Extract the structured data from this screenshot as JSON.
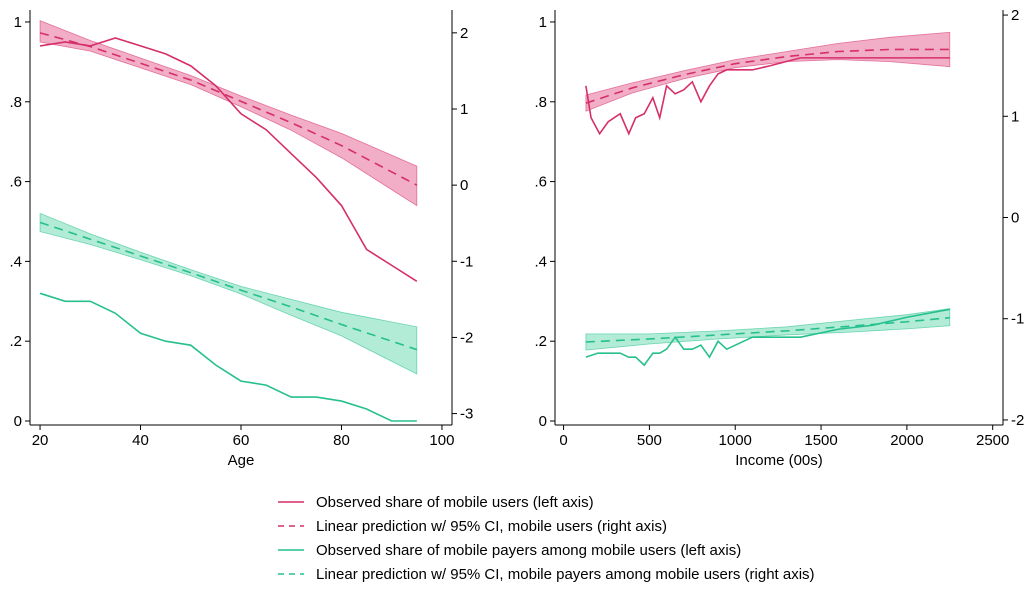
{
  "colors": {
    "mobile_users": "#d62f6a",
    "mobile_users_ci": "#ee9ab8",
    "mobile_payers": "#26c08e",
    "mobile_payers_ci": "#9fe6cc",
    "axis": "#000000"
  },
  "chart_data": [
    {
      "type": "line",
      "xlabel": "Age",
      "x_ticks": [
        20,
        40,
        60,
        80,
        100
      ],
      "xlim": [
        18,
        102
      ],
      "left_ylim": [
        -0.01,
        1.03
      ],
      "left_ticks": [
        "0",
        ".2",
        ".4",
        ".6",
        ".8",
        "1"
      ],
      "left_tick_values": [
        0,
        0.2,
        0.4,
        0.6,
        0.8,
        1
      ],
      "right_ylim": [
        -3.15,
        2.3
      ],
      "right_ticks": [
        "-3",
        "-2",
        "-1",
        "0",
        "1",
        "2"
      ],
      "right_tick_values": [
        -3,
        -2,
        -1,
        0,
        1,
        2
      ],
      "series": [
        {
          "id": "obs_users",
          "axis": "left",
          "style": "solid",
          "color_key": "mobile_users",
          "x": [
            20,
            25,
            30,
            35,
            40,
            45,
            50,
            55,
            60,
            65,
            70,
            75,
            80,
            85,
            90,
            95
          ],
          "y": [
            0.94,
            0.95,
            0.94,
            0.96,
            0.94,
            0.92,
            0.89,
            0.84,
            0.77,
            0.73,
            0.67,
            0.61,
            0.54,
            0.43,
            0.39,
            0.35
          ]
        },
        {
          "id": "pred_users",
          "axis": "right",
          "style": "dashed",
          "color_key": "mobile_users",
          "x": [
            20,
            30,
            40,
            50,
            60,
            70,
            80,
            95
          ],
          "y": [
            2.0,
            1.82,
            1.6,
            1.38,
            1.1,
            0.82,
            0.52,
            0.0
          ],
          "ci_lower": [
            1.88,
            1.76,
            1.54,
            1.32,
            1.03,
            0.72,
            0.36,
            -0.27
          ],
          "ci_upper": [
            2.16,
            1.9,
            1.67,
            1.44,
            1.17,
            0.92,
            0.68,
            0.25
          ]
        },
        {
          "id": "obs_payers",
          "axis": "left",
          "style": "solid",
          "color_key": "mobile_payers",
          "x": [
            20,
            25,
            30,
            35,
            40,
            45,
            50,
            55,
            60,
            65,
            70,
            75,
            80,
            85,
            90,
            95
          ],
          "y": [
            0.32,
            0.3,
            0.3,
            0.27,
            0.22,
            0.2,
            0.19,
            0.14,
            0.1,
            0.09,
            0.06,
            0.06,
            0.05,
            0.03,
            0.0,
            0.0
          ]
        },
        {
          "id": "pred_payers",
          "axis": "right",
          "style": "dashed",
          "color_key": "mobile_payers",
          "x": [
            20,
            30,
            40,
            50,
            60,
            70,
            80,
            95
          ],
          "y": [
            -0.49,
            -0.71,
            -0.93,
            -1.15,
            -1.38,
            -1.6,
            -1.83,
            -2.16
          ],
          "ci_lower": [
            -0.61,
            -0.78,
            -0.98,
            -1.19,
            -1.43,
            -1.71,
            -1.98,
            -2.48
          ],
          "ci_upper": [
            -0.37,
            -0.64,
            -0.88,
            -1.11,
            -1.33,
            -1.5,
            -1.67,
            -1.86
          ]
        }
      ]
    },
    {
      "type": "line",
      "xlabel": "Income (00s)",
      "x_ticks": [
        0,
        500,
        1000,
        1500,
        2000,
        2500
      ],
      "xlim": [
        -50,
        2560
      ],
      "left_ylim": [
        -0.01,
        1.03
      ],
      "left_ticks": [
        "0",
        ".2",
        ".4",
        ".6",
        ".8",
        "1"
      ],
      "left_tick_values": [
        0,
        0.2,
        0.4,
        0.6,
        0.8,
        1
      ],
      "right_ylim": [
        -2.05,
        2.05
      ],
      "right_ticks": [
        "-2",
        "-1",
        "0",
        "1",
        "2"
      ],
      "right_tick_values": [
        -2,
        -1,
        0,
        1,
        2
      ],
      "series": [
        {
          "id": "obs_users_inc",
          "axis": "left",
          "style": "solid",
          "color_key": "mobile_users",
          "x": [
            130,
            160,
            210,
            260,
            330,
            380,
            420,
            470,
            520,
            560,
            600,
            650,
            700,
            750,
            800,
            850,
            900,
            950,
            1000,
            1100,
            1200,
            1380,
            1600,
            1800,
            2000,
            2250
          ],
          "y": [
            0.84,
            0.76,
            0.72,
            0.75,
            0.77,
            0.72,
            0.76,
            0.77,
            0.81,
            0.76,
            0.84,
            0.82,
            0.83,
            0.85,
            0.8,
            0.84,
            0.87,
            0.88,
            0.88,
            0.88,
            0.89,
            0.91,
            0.91,
            0.91,
            0.91,
            0.91
          ]
        },
        {
          "id": "pred_users_inc",
          "axis": "right",
          "style": "dashed",
          "color_key": "mobile_users",
          "x": [
            130,
            400,
            700,
            1000,
            1300,
            1600,
            1900,
            2250
          ],
          "y": [
            1.13,
            1.28,
            1.41,
            1.52,
            1.59,
            1.64,
            1.66,
            1.66
          ],
          "ci_lower": [
            1.05,
            1.23,
            1.37,
            1.48,
            1.54,
            1.56,
            1.54,
            1.49
          ],
          "ci_upper": [
            1.21,
            1.33,
            1.45,
            1.56,
            1.64,
            1.72,
            1.78,
            1.83
          ]
        },
        {
          "id": "obs_payers_inc",
          "axis": "left",
          "style": "solid",
          "color_key": "mobile_payers",
          "x": [
            130,
            200,
            260,
            330,
            380,
            420,
            470,
            520,
            560,
            600,
            650,
            700,
            750,
            800,
            850,
            900,
            950,
            1000,
            1100,
            1200,
            1380,
            1600,
            1800,
            2000,
            2250
          ],
          "y": [
            0.16,
            0.17,
            0.17,
            0.17,
            0.16,
            0.16,
            0.14,
            0.17,
            0.17,
            0.18,
            0.21,
            0.18,
            0.18,
            0.19,
            0.16,
            0.2,
            0.18,
            0.19,
            0.21,
            0.21,
            0.21,
            0.23,
            0.24,
            0.26,
            0.28
          ]
        },
        {
          "id": "pred_payers_inc",
          "axis": "right",
          "style": "dashed",
          "color_key": "mobile_payers",
          "x": [
            130,
            500,
            900,
            1300,
            1700,
            2000,
            2250
          ],
          "y": [
            -1.23,
            -1.2,
            -1.16,
            -1.12,
            -1.07,
            -1.03,
            -0.99
          ],
          "ci_lower": [
            -1.31,
            -1.25,
            -1.2,
            -1.16,
            -1.13,
            -1.1,
            -1.07
          ],
          "ci_upper": [
            -1.15,
            -1.15,
            -1.12,
            -1.08,
            -1.01,
            -0.96,
            -0.9
          ]
        }
      ]
    }
  ],
  "legend": {
    "placement": "bottom-center",
    "items": [
      {
        "label": "Observed share of mobile users (left axis)",
        "style": "solid",
        "color_key": "mobile_users"
      },
      {
        "label": "Linear prediction w/ 95% CI, mobile users (right axis)",
        "style": "dashed",
        "color_key": "mobile_users"
      },
      {
        "label": "Observed share of mobile payers among mobile users (left axis)",
        "style": "solid",
        "color_key": "mobile_payers"
      },
      {
        "label": "Linear prediction w/ 95% CI, mobile payers among mobile users (right axis)",
        "style": "dashed",
        "color_key": "mobile_payers"
      }
    ]
  }
}
